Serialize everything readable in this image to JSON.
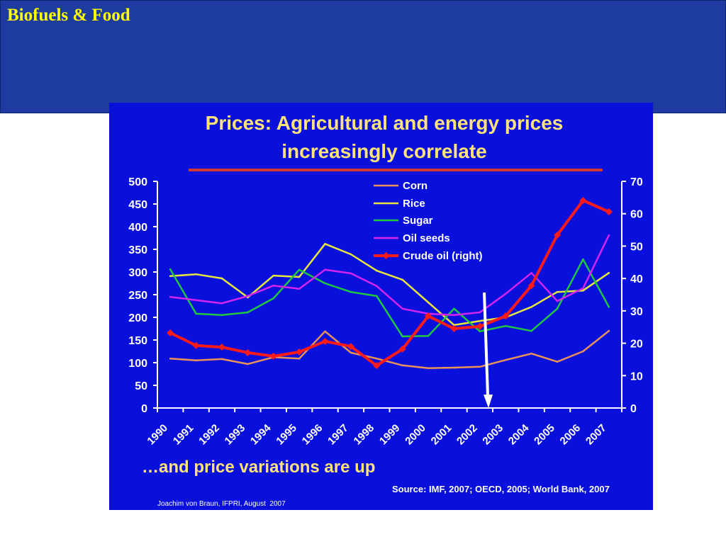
{
  "slide": {
    "title": "Biofuels & Food"
  },
  "colors": {
    "header_band": "#1e3c9f",
    "slide_title": "#ffff00",
    "chart_background": "#0a10dc",
    "chart_title": "#ffe37a",
    "title_rule": "#d03a2a"
  },
  "chart_data": {
    "type": "line",
    "title_lines": [
      "Prices: Agricultural and energy prices",
      "increasingly correlate"
    ],
    "categories": [
      "1990",
      "1991",
      "1992",
      "1993",
      "1994",
      "1995",
      "1996",
      "1997",
      "1998",
      "1999",
      "2000",
      "2001",
      "2002",
      "2003",
      "2004",
      "2005",
      "2006",
      "2007"
    ],
    "y_left": {
      "ylim": [
        0,
        500
      ],
      "ticks": [
        0,
        50,
        100,
        150,
        200,
        250,
        300,
        350,
        400,
        450,
        500
      ]
    },
    "y_right": {
      "ylim": [
        0,
        70
      ],
      "ticks": [
        0,
        10,
        20,
        30,
        40,
        50,
        60,
        70
      ]
    },
    "grid": false,
    "legend_position": "top",
    "series": [
      {
        "name": "Corn",
        "axis": "left",
        "color": "#e8925a",
        "values": [
          109,
          105,
          108,
          97,
          112,
          109,
          169,
          122,
          109,
          94,
          88,
          89,
          91,
          106,
          120,
          102,
          125,
          170
        ]
      },
      {
        "name": "Rice",
        "axis": "left",
        "color": "#e6e63c",
        "values": [
          291,
          295,
          286,
          244,
          292,
          289,
          362,
          339,
          303,
          283,
          233,
          183,
          192,
          200,
          223,
          256,
          259,
          298
        ]
      },
      {
        "name": "Sugar",
        "axis": "left",
        "color": "#20c840",
        "values": [
          306,
          208,
          205,
          211,
          242,
          305,
          275,
          256,
          247,
          158,
          159,
          219,
          169,
          181,
          170,
          219,
          328,
          223
        ]
      },
      {
        "name": "Oil seeds",
        "axis": "left",
        "color": "#d424f0",
        "values": [
          245,
          238,
          231,
          247,
          270,
          263,
          305,
          297,
          269,
          219,
          208,
          205,
          211,
          252,
          298,
          236,
          264,
          381
        ]
      },
      {
        "name": "Crude oil (right)",
        "axis": "right",
        "color": "#ff1a1a",
        "marker": "diamond",
        "values": [
          23.2,
          19.3,
          18.8,
          17.1,
          16.0,
          17.3,
          20.6,
          19.0,
          13.1,
          18.2,
          28.4,
          24.5,
          25.2,
          28.4,
          37.8,
          53.4,
          64.1,
          60.6
        ]
      }
    ],
    "annotation": "…and price variations are up",
    "source": "Source: IMF, 2007; OECD, 2005; World Bank, 2007",
    "credit": "Joachim von Braun, IFPRI, August  2007"
  }
}
